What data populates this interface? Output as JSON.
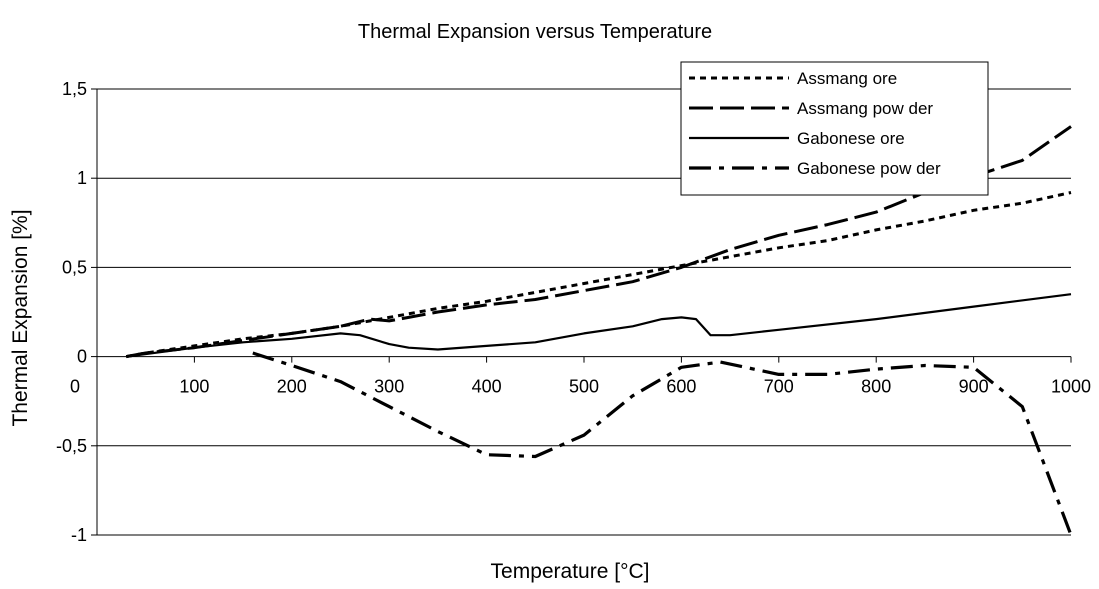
{
  "chart_data": {
    "type": "line",
    "title": "Thermal Expansion versus Temperature",
    "xlabel": "Temperature [°C]",
    "ylabel": "Thermal Expansion [%]",
    "xlim": [
      0,
      1000
    ],
    "ylim": [
      -1,
      1.5
    ],
    "x_ticks": [
      0,
      100,
      200,
      300,
      400,
      500,
      600,
      700,
      800,
      900,
      1000
    ],
    "x_tick_labels": [
      "0",
      "100",
      "200",
      "300",
      "400",
      "500",
      "600",
      "700",
      "800",
      "900",
      "1000"
    ],
    "y_ticks": [
      -1,
      -0.5,
      0,
      0.5,
      1,
      1.5
    ],
    "y_tick_labels": [
      "-1",
      "-0,5",
      "0",
      "0,5",
      "1",
      "1,5"
    ],
    "grid": "horizontal",
    "legend": "top-right",
    "series": [
      {
        "name": "Assmang ore",
        "dash": "short",
        "points": [
          [
            30,
            0
          ],
          [
            50,
            0.02
          ],
          [
            100,
            0.06
          ],
          [
            150,
            0.1
          ],
          [
            200,
            0.13
          ],
          [
            250,
            0.17
          ],
          [
            300,
            0.22
          ],
          [
            350,
            0.27
          ],
          [
            400,
            0.31
          ],
          [
            450,
            0.36
          ],
          [
            500,
            0.41
          ],
          [
            550,
            0.46
          ],
          [
            600,
            0.51
          ],
          [
            650,
            0.56
          ],
          [
            700,
            0.61
          ],
          [
            750,
            0.65
          ],
          [
            800,
            0.71
          ],
          [
            850,
            0.76
          ],
          [
            900,
            0.82
          ],
          [
            950,
            0.86
          ],
          [
            1000,
            0.92
          ]
        ]
      },
      {
        "name": "Assmang pow der",
        "dash": "long",
        "points": [
          [
            30,
            0
          ],
          [
            50,
            0.02
          ],
          [
            100,
            0.05
          ],
          [
            150,
            0.09
          ],
          [
            200,
            0.13
          ],
          [
            250,
            0.17
          ],
          [
            280,
            0.21
          ],
          [
            300,
            0.2
          ],
          [
            350,
            0.25
          ],
          [
            400,
            0.29
          ],
          [
            450,
            0.32
          ],
          [
            500,
            0.37
          ],
          [
            550,
            0.42
          ],
          [
            600,
            0.5
          ],
          [
            650,
            0.6
          ],
          [
            700,
            0.68
          ],
          [
            750,
            0.74
          ],
          [
            800,
            0.81
          ],
          [
            850,
            0.92
          ],
          [
            900,
            1.01
          ],
          [
            950,
            1.1
          ],
          [
            1000,
            1.29
          ]
        ]
      },
      {
        "name": "Gabonese ore",
        "dash": "solid",
        "points": [
          [
            30,
            0
          ],
          [
            100,
            0.05
          ],
          [
            150,
            0.08
          ],
          [
            200,
            0.1
          ],
          [
            250,
            0.13
          ],
          [
            270,
            0.12
          ],
          [
            300,
            0.07
          ],
          [
            320,
            0.05
          ],
          [
            350,
            0.04
          ],
          [
            400,
            0.06
          ],
          [
            450,
            0.08
          ],
          [
            500,
            0.13
          ],
          [
            550,
            0.17
          ],
          [
            580,
            0.21
          ],
          [
            600,
            0.22
          ],
          [
            615,
            0.21
          ],
          [
            630,
            0.12
          ],
          [
            650,
            0.12
          ],
          [
            700,
            0.15
          ],
          [
            800,
            0.21
          ],
          [
            900,
            0.28
          ],
          [
            1000,
            0.35
          ]
        ]
      },
      {
        "name": "Gabonese pow der",
        "dash": "dashdot",
        "points": [
          [
            160,
            0.02
          ],
          [
            200,
            -0.05
          ],
          [
            250,
            -0.14
          ],
          [
            300,
            -0.28
          ],
          [
            350,
            -0.42
          ],
          [
            400,
            -0.55
          ],
          [
            450,
            -0.56
          ],
          [
            500,
            -0.44
          ],
          [
            550,
            -0.22
          ],
          [
            600,
            -0.06
          ],
          [
            640,
            -0.03
          ],
          [
            700,
            -0.1
          ],
          [
            750,
            -0.1
          ],
          [
            800,
            -0.07
          ],
          [
            850,
            -0.05
          ],
          [
            900,
            -0.06
          ],
          [
            950,
            -0.28
          ],
          [
            1000,
            -1.0
          ]
        ]
      }
    ]
  }
}
